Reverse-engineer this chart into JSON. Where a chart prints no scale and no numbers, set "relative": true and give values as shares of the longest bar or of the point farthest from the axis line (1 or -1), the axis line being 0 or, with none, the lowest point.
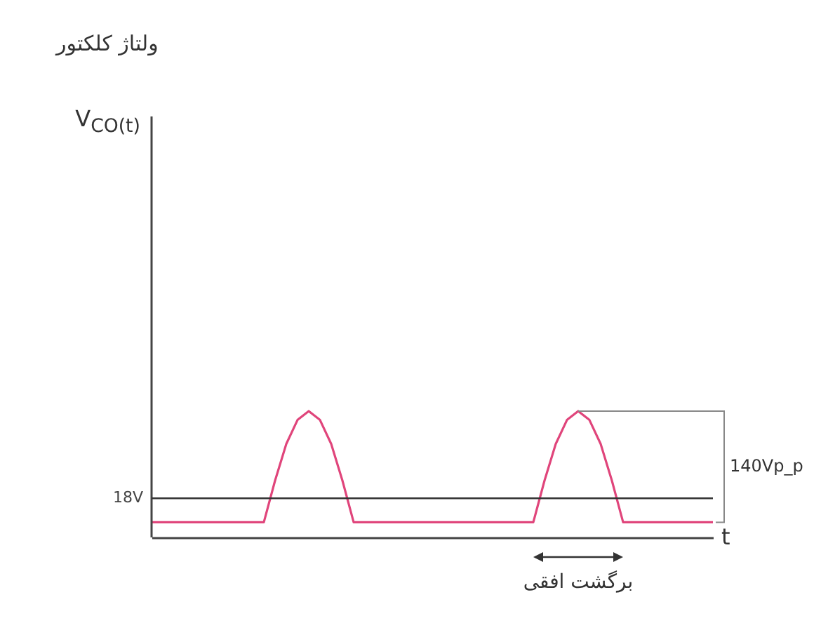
{
  "chart_data": {
    "type": "line",
    "title": "ولتاژ کلکتور",
    "xlabel": "t",
    "relative": true,
    "tick_labels": false,
    "color": "#e0457b",
    "categories": [
      null,
      null,
      null,
      null,
      null,
      null,
      null,
      null,
      null,
      null,
      null,
      null,
      null,
      null,
      null,
      null,
      null,
      null,
      null,
      null,
      null,
      null,
      null,
      null,
      null,
      null,
      null,
      null,
      null,
      null,
      null,
      null,
      null,
      null,
      null,
      null,
      null,
      null,
      null,
      null,
      null,
      null,
      null,
      null,
      null,
      null,
      null,
      null,
      null,
      null,
      null
    ],
    "values": [
      0.12,
      0.12,
      0.12,
      0.12,
      0.12,
      0.12,
      0.12,
      0.12,
      0.12,
      0.12,
      0.12,
      0.45,
      0.74,
      0.93,
      1,
      0.93,
      0.74,
      0.45,
      0.12,
      0.12,
      0.12,
      0.12,
      0.12,
      0.12,
      0.12,
      0.12,
      0.12,
      0.12,
      0.12,
      0.12,
      0.12,
      0.12,
      0.12,
      0.12,
      0.12,
      0.45,
      0.74,
      0.93,
      1,
      0.93,
      0.74,
      0.45,
      0.12,
      0.12,
      0.12,
      0.12,
      0.12,
      0.12,
      0.12,
      0.12,
      0.12
    ],
    "ref_lines": [
      {
        "axis": "y",
        "value": 0.31,
        "label": "18V",
        "color": "#333333"
      }
    ],
    "annotations": [
      "140Vp_p",
      "برگشت افقی",
      "V$_{CO(t)}$"
    ]
  }
}
